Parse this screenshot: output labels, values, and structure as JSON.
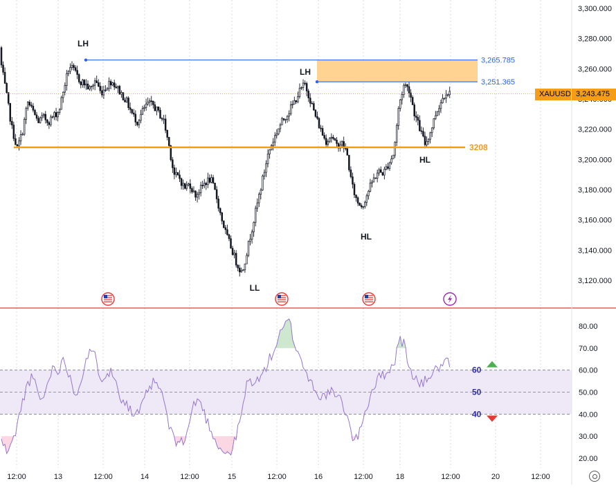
{
  "chart_data": [
    {
      "type": "candlestick",
      "symbol": "XAUUSD",
      "last_price_label": "3,243.475",
      "y_ticks": [
        "3,300.000",
        "3,280.000",
        "3,260.000",
        "3,240.000",
        "3,220.000",
        "3,200.000",
        "3,180.000",
        "3,160.000",
        "3,140.000",
        "3,120.000"
      ],
      "ylim": [
        3108,
        3308
      ],
      "x_ticks": [
        "12:00",
        "13",
        "12:00",
        "14",
        "12:00",
        "15",
        "12:00",
        "16",
        "12:00",
        "18",
        "12:00",
        "20",
        "12:00"
      ],
      "close_path": [
        3262,
        3242,
        3221,
        3207,
        3218,
        3238,
        3232,
        3225,
        3228,
        3225,
        3229,
        3232,
        3248,
        3262,
        3258,
        3252,
        3250,
        3246,
        3253,
        3244,
        3248,
        3252,
        3248,
        3243,
        3238,
        3230,
        3225,
        3232,
        3237,
        3236,
        3231,
        3226,
        3210,
        3190,
        3188,
        3181,
        3184,
        3176,
        3180,
        3185,
        3187,
        3177,
        3162,
        3150,
        3141,
        3131,
        3125,
        3140,
        3156,
        3172,
        3188,
        3204,
        3213,
        3221,
        3227,
        3232,
        3238,
        3245,
        3250,
        3240,
        3229,
        3220,
        3212,
        3216,
        3209,
        3211,
        3205,
        3183,
        3172,
        3169,
        3178,
        3186,
        3192,
        3191,
        3197,
        3204,
        3236,
        3250,
        3246,
        3230,
        3220,
        3210,
        3218,
        3230,
        3238,
        3245,
        3243
      ],
      "levels": [
        {
          "label": "3,265.785",
          "value": 3265.785,
          "color": "#2962ff"
        },
        {
          "label": "3,251.365",
          "value": 3251.365,
          "color": "#2962ff"
        },
        {
          "label": "3208",
          "value": 3208,
          "color": "#f59d17"
        }
      ],
      "supply_zone": {
        "from": 3251.365,
        "to": 3265.785,
        "color": "#ffcc80"
      },
      "annotations": [
        "LH",
        "LH",
        "LL",
        "HL",
        "HL"
      ],
      "events": [
        "us-flag-icon",
        "us-flag-icon",
        "us-flag-icon",
        "lightning-icon"
      ]
    },
    {
      "type": "line",
      "indicator": "RSI",
      "y_ticks": [
        "80.00",
        "70.00",
        "60.00",
        "50.00",
        "40.00",
        "30.00",
        "20.00"
      ],
      "ylim": [
        16,
        86
      ],
      "band": {
        "upper": 60,
        "middle": 50,
        "lower": 40
      },
      "band_labels": [
        "60",
        "50",
        "40"
      ],
      "values": [
        28,
        23,
        26,
        35,
        45,
        54,
        57,
        49,
        46,
        56,
        62,
        60,
        65,
        58,
        49,
        53,
        64,
        68,
        66,
        56,
        59,
        59,
        54,
        47,
        45,
        40,
        40,
        44,
        51,
        54,
        53,
        47,
        35,
        28,
        28,
        27,
        37,
        46,
        46,
        39,
        33,
        28,
        24,
        22,
        23,
        31,
        41,
        55,
        55,
        55,
        58,
        64,
        68,
        75,
        79,
        83,
        72,
        67,
        60,
        55,
        52,
        47,
        49,
        50,
        48,
        46,
        40,
        30,
        28,
        38,
        44,
        52,
        56,
        58,
        60,
        62,
        74,
        72,
        60,
        57,
        53,
        55,
        58,
        60,
        62,
        63,
        63
      ]
    }
  ]
}
